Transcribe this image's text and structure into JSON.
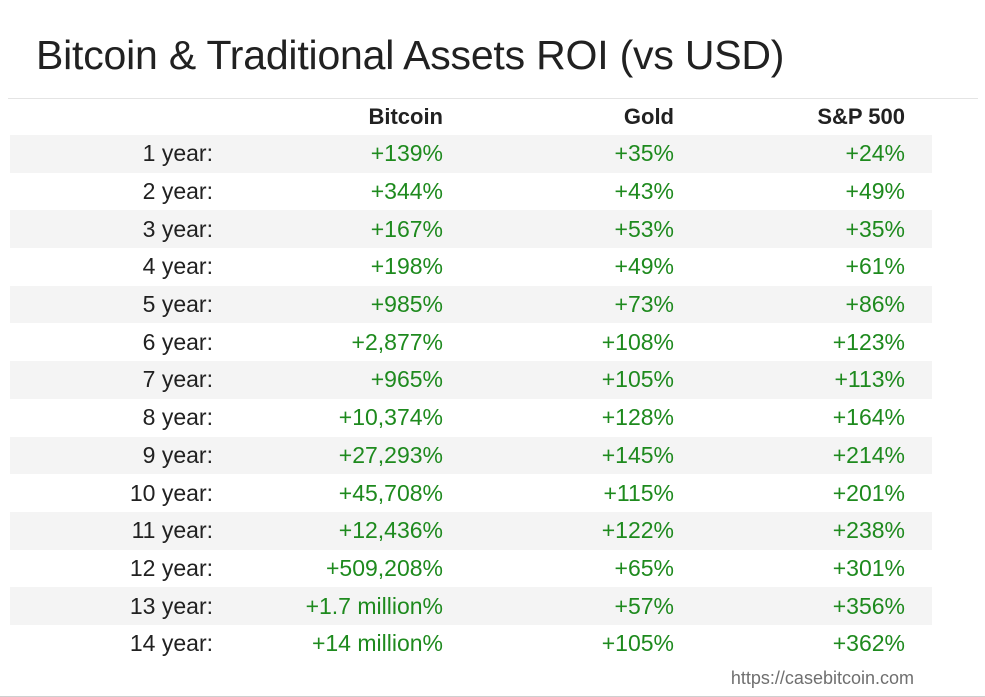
{
  "chart_data": {
    "type": "table",
    "title": "Bitcoin & Traditional Assets ROI (vs USD)",
    "columns": [
      "",
      "Bitcoin",
      "Gold",
      "S&P 500"
    ],
    "rows": [
      {
        "label": "1 year:",
        "bitcoin": "+139%",
        "gold": "+35%",
        "sp500": "+24%"
      },
      {
        "label": "2 year:",
        "bitcoin": "+344%",
        "gold": "+43%",
        "sp500": "+49%"
      },
      {
        "label": "3 year:",
        "bitcoin": "+167%",
        "gold": "+53%",
        "sp500": "+35%"
      },
      {
        "label": "4 year:",
        "bitcoin": "+198%",
        "gold": "+49%",
        "sp500": "+61%"
      },
      {
        "label": "5 year:",
        "bitcoin": "+985%",
        "gold": "+73%",
        "sp500": "+86%"
      },
      {
        "label": "6 year:",
        "bitcoin": "+2,877%",
        "gold": "+108%",
        "sp500": "+123%"
      },
      {
        "label": "7 year:",
        "bitcoin": "+965%",
        "gold": "+105%",
        "sp500": "+113%"
      },
      {
        "label": "8 year:",
        "bitcoin": "+10,374%",
        "gold": "+128%",
        "sp500": "+164%"
      },
      {
        "label": "9 year:",
        "bitcoin": "+27,293%",
        "gold": "+145%",
        "sp500": "+214%"
      },
      {
        "label": "10 year:",
        "bitcoin": "+45,708%",
        "gold": "+115%",
        "sp500": "+201%"
      },
      {
        "label": "11 year:",
        "bitcoin": "+12,436%",
        "gold": "+122%",
        "sp500": "+238%"
      },
      {
        "label": "12 year:",
        "bitcoin": "+509,208%",
        "gold": "+65%",
        "sp500": "+301%"
      },
      {
        "label": "13 year:",
        "bitcoin": "+1.7 million%",
        "gold": "+57%",
        "sp500": "+356%"
      },
      {
        "label": "14 year:",
        "bitcoin": "+14 million%",
        "gold": "+105%",
        "sp500": "+362%"
      }
    ],
    "source": "https://casebitcoin.com"
  },
  "colors": {
    "positive_value": "#1e8a1e",
    "label_text": "#212121",
    "row_shade": "#f4f4f4",
    "source_text": "#6f6f6f"
  }
}
